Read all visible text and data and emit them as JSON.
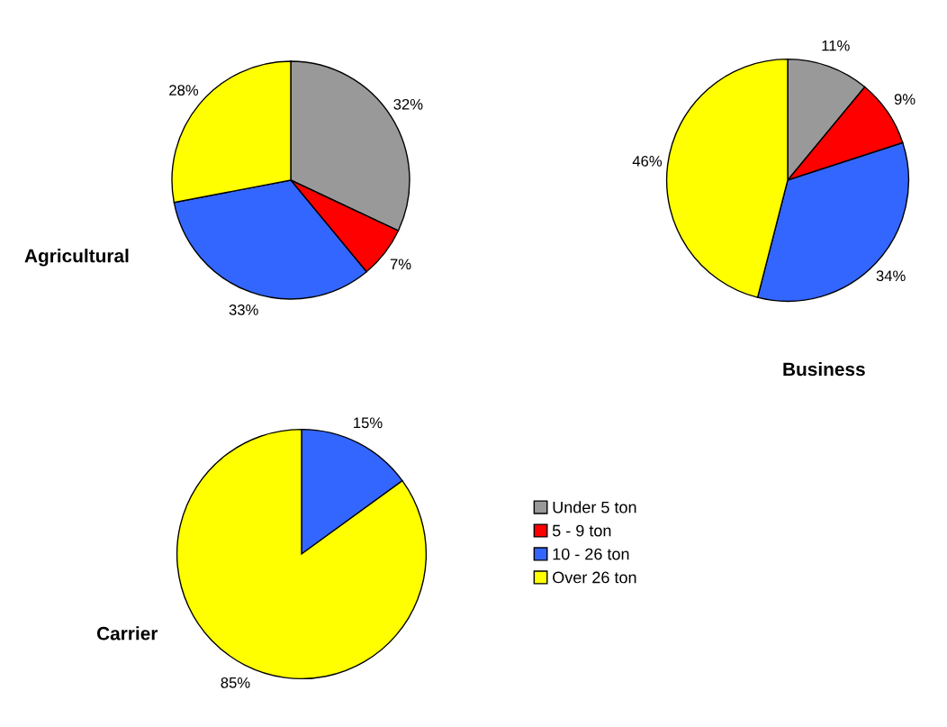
{
  "chart_data": [
    {
      "type": "pie",
      "title": "Agricultural",
      "categories": [
        "Under 5 ton",
        "5 - 9 ton",
        "10 - 26 ton",
        "Over 26 ton"
      ],
      "values": [
        32,
        7,
        33,
        28
      ],
      "value_labels": [
        "32%",
        "7%",
        "33%",
        "28%"
      ],
      "colors": [
        "#999999",
        "#ff0000",
        "#3366ff",
        "#ffff00"
      ],
      "legend": "bottom right"
    },
    {
      "type": "pie",
      "title": "Business",
      "categories": [
        null,
        null,
        null,
        null
      ],
      "values": [
        11,
        9,
        34,
        46
      ],
      "value_labels": [
        "11%",
        "9%",
        "34%",
        "46%"
      ],
      "colors": [
        "#999999",
        "#ff0000",
        "#3366ff",
        "#ffff00"
      ]
    },
    {
      "type": "pie",
      "title": "Carrier",
      "categories": [
        null,
        null
      ],
      "values": [
        15,
        85
      ],
      "value_labels": [
        "15%",
        "85%"
      ],
      "colors": [
        "#3366ff",
        "#ffff00"
      ]
    }
  ]
}
